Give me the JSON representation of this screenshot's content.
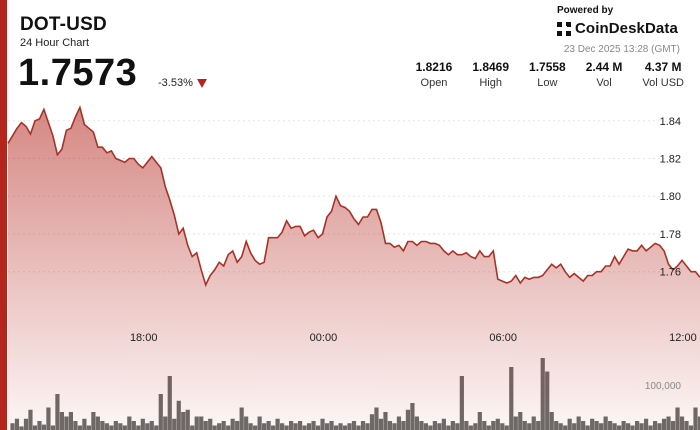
{
  "header": {
    "ticker": "DOT-USD",
    "subtitle": "24 Hour Chart",
    "price": "1.7573",
    "change": "-3.53%"
  },
  "branding": {
    "powered_by": "Powered by",
    "logo_text": "CoinDeskData",
    "timestamp": "23 Dec 2025 13:28 (GMT)"
  },
  "stats": [
    {
      "value": "1.8216",
      "label": "Open"
    },
    {
      "value": "1.8469",
      "label": "High"
    },
    {
      "value": "1.7558",
      "label": "Low"
    },
    {
      "value": "2.44 M",
      "label": "Vol"
    },
    {
      "value": "4.37 M",
      "label": "Vol USD"
    }
  ],
  "colors": {
    "accent": "#b3261e",
    "line": "#a83226",
    "volume": "#6b6b6b"
  },
  "chart_data": {
    "type": "line",
    "x_unit": "hours since 13:28 on the previous day",
    "x_ticks": [
      {
        "x": 4.53,
        "label": "18:00"
      },
      {
        "x": 10.53,
        "label": "00:00"
      },
      {
        "x": 16.53,
        "label": "06:00"
      },
      {
        "x": 22.53,
        "label": "12:00"
      }
    ],
    "y_ticks": [
      1.76,
      1.78,
      1.8,
      1.82,
      1.84
    ],
    "y_range": [
      1.745,
      1.851
    ],
    "volume_label": "100,000",
    "volume_label_value": 100000,
    "volume_range": [
      0,
      400000
    ],
    "price_series": {
      "name": "DOT-USD",
      "points": [
        [
          0,
          1.828
        ],
        [
          0.15,
          1.832
        ],
        [
          0.3,
          1.836
        ],
        [
          0.45,
          1.839
        ],
        [
          0.6,
          1.837
        ],
        [
          0.75,
          1.833
        ],
        [
          0.9,
          1.84
        ],
        [
          1.05,
          1.841
        ],
        [
          1.2,
          1.846
        ],
        [
          1.35,
          1.839
        ],
        [
          1.5,
          1.832
        ],
        [
          1.65,
          1.822
        ],
        [
          1.8,
          1.825
        ],
        [
          1.95,
          1.835
        ],
        [
          2.1,
          1.836
        ],
        [
          2.25,
          1.842
        ],
        [
          2.4,
          1.847
        ],
        [
          2.55,
          1.838
        ],
        [
          2.7,
          1.836
        ],
        [
          2.85,
          1.834
        ],
        [
          3.0,
          1.826
        ],
        [
          3.15,
          1.826
        ],
        [
          3.3,
          1.823
        ],
        [
          3.45,
          1.824
        ],
        [
          3.6,
          1.82
        ],
        [
          3.75,
          1.819
        ],
        [
          3.9,
          1.818
        ],
        [
          4.05,
          1.82
        ],
        [
          4.2,
          1.82
        ],
        [
          4.35,
          1.817
        ],
        [
          4.5,
          1.815
        ],
        [
          4.65,
          1.818
        ],
        [
          4.8,
          1.821
        ],
        [
          4.95,
          1.818
        ],
        [
          5.1,
          1.815
        ],
        [
          5.25,
          1.805
        ],
        [
          5.4,
          1.798
        ],
        [
          5.55,
          1.79
        ],
        [
          5.7,
          1.78
        ],
        [
          5.85,
          1.783
        ],
        [
          6.0,
          1.774
        ],
        [
          6.15,
          1.768
        ],
        [
          6.3,
          1.77
        ],
        [
          6.45,
          1.761
        ],
        [
          6.6,
          1.753
        ],
        [
          6.75,
          1.758
        ],
        [
          6.9,
          1.761
        ],
        [
          7.05,
          1.765
        ],
        [
          7.2,
          1.763
        ],
        [
          7.35,
          1.769
        ],
        [
          7.5,
          1.771
        ],
        [
          7.65,
          1.765
        ],
        [
          7.8,
          1.768
        ],
        [
          7.95,
          1.776
        ],
        [
          8.1,
          1.77
        ],
        [
          8.25,
          1.766
        ],
        [
          8.4,
          1.764
        ],
        [
          8.55,
          1.765
        ],
        [
          8.7,
          1.778
        ],
        [
          8.85,
          1.778
        ],
        [
          9.0,
          1.778
        ],
        [
          9.15,
          1.781
        ],
        [
          9.3,
          1.787
        ],
        [
          9.45,
          1.783
        ],
        [
          9.6,
          1.784
        ],
        [
          9.75,
          1.784
        ],
        [
          9.9,
          1.779
        ],
        [
          10.05,
          1.781
        ],
        [
          10.2,
          1.782
        ],
        [
          10.35,
          1.778
        ],
        [
          10.5,
          1.78
        ],
        [
          10.65,
          1.789
        ],
        [
          10.8,
          1.792
        ],
        [
          10.95,
          1.8
        ],
        [
          11.1,
          1.795
        ],
        [
          11.25,
          1.794
        ],
        [
          11.4,
          1.792
        ],
        [
          11.55,
          1.788
        ],
        [
          11.7,
          1.785
        ],
        [
          11.85,
          1.789
        ],
        [
          12.0,
          1.789
        ],
        [
          12.15,
          1.793
        ],
        [
          12.3,
          1.793
        ],
        [
          12.45,
          1.786
        ],
        [
          12.6,
          1.775
        ],
        [
          12.75,
          1.775
        ],
        [
          12.9,
          1.773
        ],
        [
          13.05,
          1.774
        ],
        [
          13.2,
          1.771
        ],
        [
          13.35,
          1.776
        ],
        [
          13.5,
          1.776
        ],
        [
          13.65,
          1.774
        ],
        [
          13.8,
          1.776
        ],
        [
          13.95,
          1.776
        ],
        [
          14.1,
          1.775
        ],
        [
          14.25,
          1.775
        ],
        [
          14.4,
          1.774
        ],
        [
          14.55,
          1.771
        ],
        [
          14.7,
          1.769
        ],
        [
          14.85,
          1.771
        ],
        [
          15.0,
          1.769
        ],
        [
          15.15,
          1.769
        ],
        [
          15.3,
          1.77
        ],
        [
          15.45,
          1.768
        ],
        [
          15.6,
          1.767
        ],
        [
          15.75,
          1.771
        ],
        [
          15.9,
          1.768
        ],
        [
          16.05,
          1.768
        ],
        [
          16.2,
          1.771
        ],
        [
          16.35,
          1.756
        ],
        [
          16.5,
          1.755
        ],
        [
          16.65,
          1.754
        ],
        [
          16.8,
          1.755
        ],
        [
          16.95,
          1.758
        ],
        [
          17.1,
          1.754
        ],
        [
          17.25,
          1.757
        ],
        [
          17.4,
          1.756
        ],
        [
          17.55,
          1.757
        ],
        [
          17.7,
          1.757
        ],
        [
          17.85,
          1.758
        ],
        [
          18.0,
          1.761
        ],
        [
          18.15,
          1.764
        ],
        [
          18.3,
          1.762
        ],
        [
          18.45,
          1.764
        ],
        [
          18.6,
          1.76
        ],
        [
          18.75,
          1.757
        ],
        [
          18.9,
          1.759
        ],
        [
          19.05,
          1.757
        ],
        [
          19.2,
          1.755
        ],
        [
          19.35,
          1.758
        ],
        [
          19.5,
          1.758
        ],
        [
          19.65,
          1.76
        ],
        [
          19.8,
          1.76
        ],
        [
          19.95,
          1.763
        ],
        [
          20.1,
          1.763
        ],
        [
          20.25,
          1.768
        ],
        [
          20.4,
          1.764
        ],
        [
          20.55,
          1.768
        ],
        [
          20.7,
          1.772
        ],
        [
          20.85,
          1.771
        ],
        [
          21.0,
          1.771
        ],
        [
          21.15,
          1.774
        ],
        [
          21.3,
          1.771
        ],
        [
          21.45,
          1.773
        ],
        [
          21.6,
          1.775
        ],
        [
          21.75,
          1.774
        ],
        [
          21.9,
          1.771
        ],
        [
          22.05,
          1.764
        ],
        [
          22.2,
          1.761
        ],
        [
          22.35,
          1.763
        ],
        [
          22.5,
          1.766
        ],
        [
          22.65,
          1.763
        ],
        [
          22.8,
          1.76
        ],
        [
          22.95,
          1.76
        ],
        [
          23.1,
          1.757
        ]
      ]
    },
    "volume_series": {
      "name": "Vol",
      "points": [
        [
          0.15,
          15000
        ],
        [
          0.3,
          25000
        ],
        [
          0.45,
          8000
        ],
        [
          0.6,
          25000
        ],
        [
          0.75,
          45000
        ],
        [
          0.9,
          10000
        ],
        [
          1.05,
          20000
        ],
        [
          1.2,
          12000
        ],
        [
          1.35,
          50000
        ],
        [
          1.5,
          10000
        ],
        [
          1.65,
          80000
        ],
        [
          1.8,
          40000
        ],
        [
          1.95,
          30000
        ],
        [
          2.1,
          40000
        ],
        [
          2.25,
          20000
        ],
        [
          2.4,
          10000
        ],
        [
          2.55,
          25000
        ],
        [
          2.7,
          10000
        ],
        [
          2.85,
          40000
        ],
        [
          3.0,
          30000
        ],
        [
          3.15,
          20000
        ],
        [
          3.3,
          15000
        ],
        [
          3.45,
          10000
        ],
        [
          3.6,
          20000
        ],
        [
          3.75,
          15000
        ],
        [
          3.9,
          10000
        ],
        [
          4.05,
          30000
        ],
        [
          4.2,
          20000
        ],
        [
          4.35,
          10000
        ],
        [
          4.5,
          25000
        ],
        [
          4.65,
          15000
        ],
        [
          4.8,
          20000
        ],
        [
          4.95,
          10000
        ],
        [
          5.1,
          80000
        ],
        [
          5.25,
          30000
        ],
        [
          5.4,
          120000
        ],
        [
          5.55,
          25000
        ],
        [
          5.7,
          65000
        ],
        [
          5.85,
          40000
        ],
        [
          6.0,
          45000
        ],
        [
          6.15,
          10000
        ],
        [
          6.3,
          30000
        ],
        [
          6.45,
          30000
        ],
        [
          6.6,
          20000
        ],
        [
          6.75,
          25000
        ],
        [
          6.9,
          10000
        ],
        [
          7.05,
          15000
        ],
        [
          7.2,
          20000
        ],
        [
          7.35,
          10000
        ],
        [
          7.5,
          25000
        ],
        [
          7.65,
          20000
        ],
        [
          7.8,
          50000
        ],
        [
          7.95,
          30000
        ],
        [
          8.1,
          15000
        ],
        [
          8.25,
          10000
        ],
        [
          8.4,
          30000
        ],
        [
          8.55,
          15000
        ],
        [
          8.7,
          20000
        ],
        [
          8.85,
          10000
        ],
        [
          9.0,
          25000
        ],
        [
          9.15,
          15000
        ],
        [
          9.3,
          10000
        ],
        [
          9.45,
          20000
        ],
        [
          9.6,
          15000
        ],
        [
          9.75,
          20000
        ],
        [
          9.9,
          10000
        ],
        [
          10.05,
          15000
        ],
        [
          10.2,
          20000
        ],
        [
          10.35,
          10000
        ],
        [
          10.5,
          25000
        ],
        [
          10.65,
          15000
        ],
        [
          10.8,
          20000
        ],
        [
          10.95,
          10000
        ],
        [
          11.1,
          15000
        ],
        [
          11.25,
          10000
        ],
        [
          11.4,
          15000
        ],
        [
          11.55,
          20000
        ],
        [
          11.7,
          10000
        ],
        [
          11.85,
          20000
        ],
        [
          12.0,
          15000
        ],
        [
          12.15,
          35000
        ],
        [
          12.3,
          50000
        ],
        [
          12.45,
          25000
        ],
        [
          12.6,
          40000
        ],
        [
          12.75,
          20000
        ],
        [
          12.9,
          15000
        ],
        [
          13.05,
          30000
        ],
        [
          13.2,
          20000
        ],
        [
          13.35,
          45000
        ],
        [
          13.5,
          60000
        ],
        [
          13.65,
          30000
        ],
        [
          13.8,
          20000
        ],
        [
          13.95,
          15000
        ],
        [
          14.1,
          10000
        ],
        [
          14.25,
          20000
        ],
        [
          14.4,
          15000
        ],
        [
          14.55,
          25000
        ],
        [
          14.7,
          10000
        ],
        [
          14.85,
          20000
        ],
        [
          15.0,
          15000
        ],
        [
          15.15,
          120000
        ],
        [
          15.3,
          20000
        ],
        [
          15.45,
          10000
        ],
        [
          15.6,
          15000
        ],
        [
          15.75,
          40000
        ],
        [
          15.9,
          20000
        ],
        [
          16.05,
          10000
        ],
        [
          16.2,
          20000
        ],
        [
          16.35,
          25000
        ],
        [
          16.5,
          15000
        ],
        [
          16.65,
          10000
        ],
        [
          16.8,
          140000
        ],
        [
          16.95,
          30000
        ],
        [
          17.1,
          40000
        ],
        [
          17.25,
          20000
        ],
        [
          17.4,
          15000
        ],
        [
          17.55,
          30000
        ],
        [
          17.7,
          20000
        ],
        [
          17.85,
          160000
        ],
        [
          18.0,
          130000
        ],
        [
          18.15,
          40000
        ],
        [
          18.3,
          20000
        ],
        [
          18.45,
          15000
        ],
        [
          18.6,
          10000
        ],
        [
          18.75,
          25000
        ],
        [
          18.9,
          15000
        ],
        [
          19.05,
          30000
        ],
        [
          19.2,
          20000
        ],
        [
          19.35,
          10000
        ],
        [
          19.5,
          25000
        ],
        [
          19.65,
          20000
        ],
        [
          19.8,
          15000
        ],
        [
          19.95,
          30000
        ],
        [
          20.1,
          20000
        ],
        [
          20.25,
          15000
        ],
        [
          20.4,
          10000
        ],
        [
          20.55,
          20000
        ],
        [
          20.7,
          15000
        ],
        [
          20.85,
          10000
        ],
        [
          21.0,
          20000
        ],
        [
          21.15,
          15000
        ],
        [
          21.3,
          25000
        ],
        [
          21.45,
          10000
        ],
        [
          21.6,
          20000
        ],
        [
          21.75,
          15000
        ],
        [
          21.9,
          25000
        ],
        [
          22.05,
          30000
        ],
        [
          22.2,
          20000
        ],
        [
          22.35,
          50000
        ],
        [
          22.5,
          30000
        ],
        [
          22.65,
          20000
        ],
        [
          22.8,
          10000
        ],
        [
          22.95,
          50000
        ],
        [
          23.1,
          30000
        ]
      ]
    }
  }
}
